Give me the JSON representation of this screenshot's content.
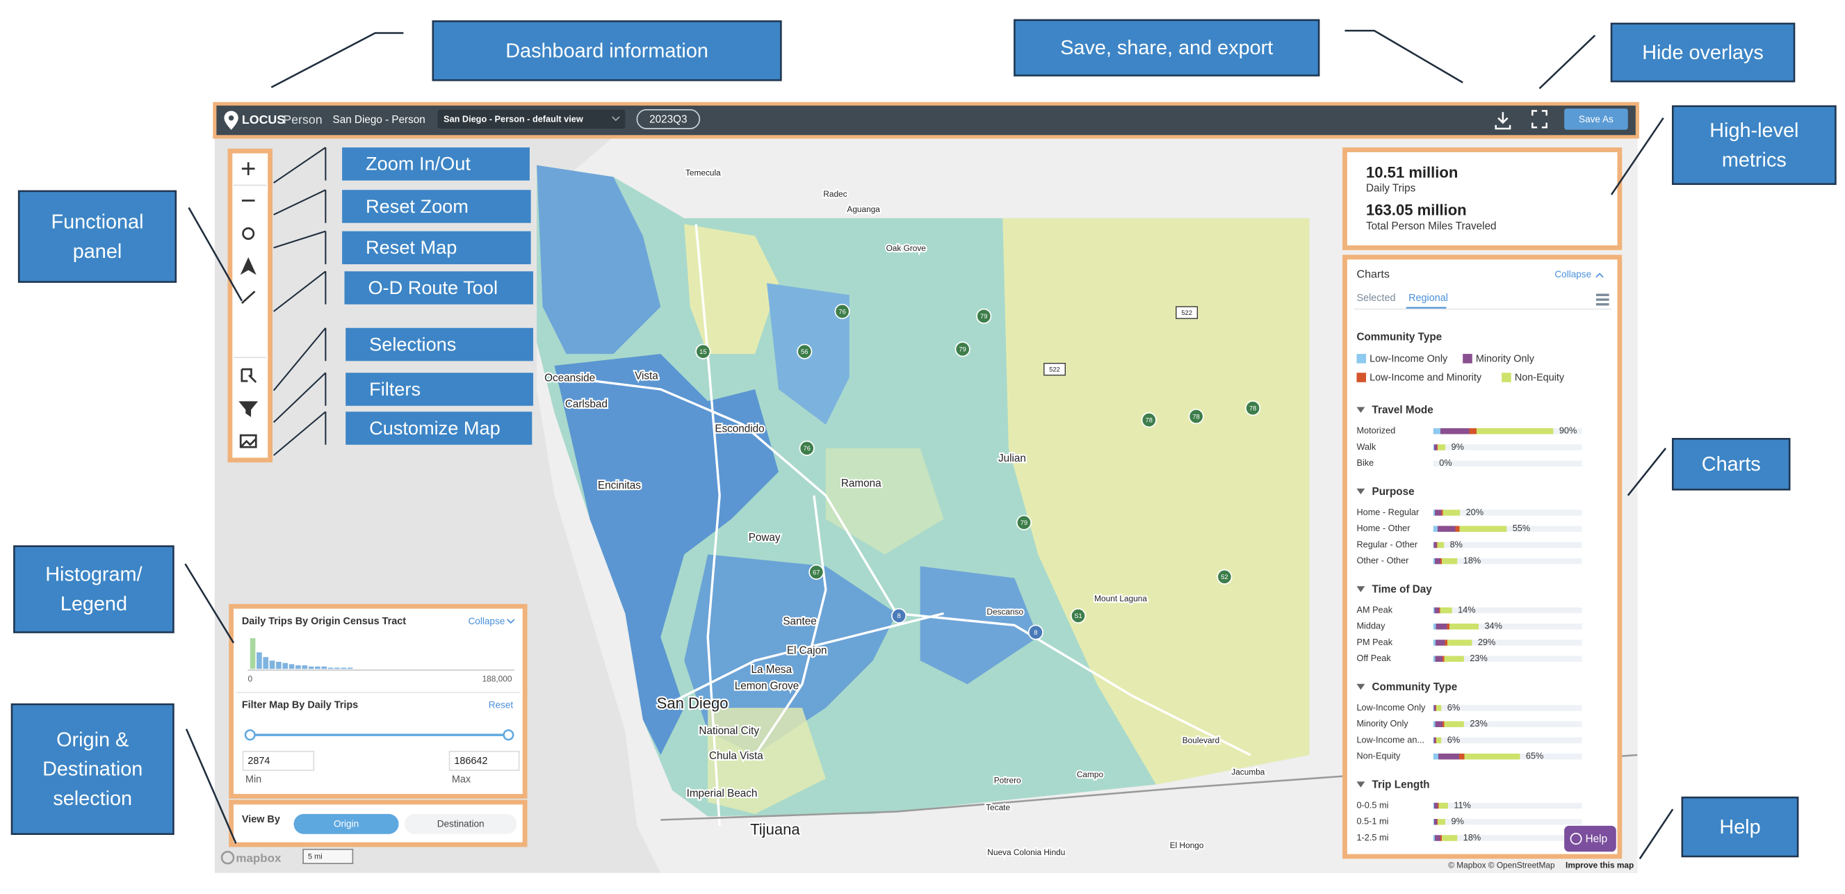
{
  "annotations": [
    {
      "lines": [
        "Dashboard information"
      ]
    },
    {
      "lines": [
        "Save, share, and export"
      ]
    },
    {
      "lines": [
        "Hide overlays"
      ]
    },
    {
      "lines": [
        "High-level",
        "metrics"
      ]
    },
    {
      "lines": [
        "Functional",
        "panel"
      ]
    },
    {
      "lines": [
        "Charts"
      ]
    },
    {
      "lines": [
        "Histogram/",
        "Legend"
      ]
    },
    {
      "lines": [
        "Origin &",
        "Destination",
        "selection"
      ]
    },
    {
      "lines": [
        "Help"
      ]
    }
  ],
  "tool_labels": [
    "Zoom In/Out",
    "Reset Zoom",
    "Reset Map",
    "O-D Route Tool",
    "Selections",
    "Filters",
    "Customize Map"
  ],
  "header": {
    "brand": "LOCUS",
    "product": "Person",
    "region": "San Diego - Person",
    "view": "San Diego - Person - default view",
    "period": "2023Q3",
    "save": "Save As"
  },
  "metrics": [
    {
      "value": "10.51 million",
      "label": "Daily Trips"
    },
    {
      "value": "163.05 million",
      "label": "Total Person Miles Traveled"
    }
  ],
  "charts_panel": {
    "title": "Charts",
    "collapse": "Collapse",
    "tabs": [
      "Selected",
      "Regional"
    ],
    "legend_title": "Community Type",
    "legend": [
      "Low-Income Only",
      "Minority Only",
      "Low-Income and Minority",
      "Non-Equity"
    ],
    "sections": [
      {
        "title": "Travel Mode",
        "rows": [
          {
            "name": "Motorized",
            "value": 90,
            "label": "90%"
          },
          {
            "name": "Walk",
            "value": 9,
            "label": "9%"
          },
          {
            "name": "Bike",
            "value": 0,
            "label": "0%"
          }
        ]
      },
      {
        "title": "Purpose",
        "rows": [
          {
            "name": "Home - Regular",
            "value": 20,
            "label": "20%"
          },
          {
            "name": "Home - Other",
            "value": 55,
            "label": "55%"
          },
          {
            "name": "Regular - Other",
            "value": 8,
            "label": "8%"
          },
          {
            "name": "Other - Other",
            "value": 18,
            "label": "18%"
          }
        ]
      },
      {
        "title": "Time of Day",
        "rows": [
          {
            "name": "AM Peak",
            "value": 14,
            "label": "14%"
          },
          {
            "name": "Midday",
            "value": 34,
            "label": "34%"
          },
          {
            "name": "PM Peak",
            "value": 29,
            "label": "29%"
          },
          {
            "name": "Off Peak",
            "value": 23,
            "label": "23%"
          }
        ]
      },
      {
        "title": "Community Type",
        "rows": [
          {
            "name": "Low-Income Only",
            "value": 6,
            "label": "6%"
          },
          {
            "name": "Minority Only",
            "value": 23,
            "label": "23%"
          },
          {
            "name": "Low-Income an...",
            "value": 6,
            "label": "6%"
          },
          {
            "name": "Non-Equity",
            "value": 65,
            "label": "65%"
          }
        ]
      },
      {
        "title": "Trip Length",
        "rows": [
          {
            "name": "0-0.5 mi",
            "value": 11,
            "label": "11%"
          },
          {
            "name": "0.5-1 mi",
            "value": 9,
            "label": "9%"
          },
          {
            "name": "1-2.5 mi",
            "value": 18,
            "label": "18%"
          }
        ]
      }
    ]
  },
  "histogram": {
    "title": "Daily Trips By Origin Census Tract",
    "collapse": "Collapse",
    "axis": [
      "0",
      "188,000"
    ],
    "filter_title": "Filter Map By Daily Trips",
    "reset": "Reset",
    "min": "2874",
    "max": "186642",
    "min_label": "Min",
    "max_label": "Max"
  },
  "view_by": {
    "label": "View By",
    "options": [
      "Origin",
      "Destination"
    ]
  },
  "map": {
    "places": [
      "Temecula",
      "Radec",
      "Aguanga",
      "Oak Grove",
      "Oceanside",
      "Vista",
      "Carlsbad",
      "Escondido",
      "Encinitas",
      "Ramona",
      "Julian",
      "Poway",
      "Santee",
      "El Cajon",
      "La Mesa",
      "Lemon Grove",
      "San Diego",
      "National City",
      "Chula Vista",
      "Imperial Beach",
      "Tijuana",
      "Tecate",
      "Descanso",
      "Mount Laguna",
      "Boulevard",
      "Jacumba",
      "Campo",
      "Potrero",
      "Nueva Colonia Hindu",
      "El Hongo"
    ],
    "shields": [
      "79",
      "79",
      "79",
      "78",
      "78",
      "78",
      "76",
      "76",
      "67",
      "52",
      "8",
      "8",
      "522",
      "522",
      "56",
      "15",
      "S1"
    ],
    "logo": "mapbox",
    "scale": "5 mi",
    "attribution": "© Mapbox © OpenStreetMap",
    "improve": "Improve this map"
  },
  "help": "Help"
}
